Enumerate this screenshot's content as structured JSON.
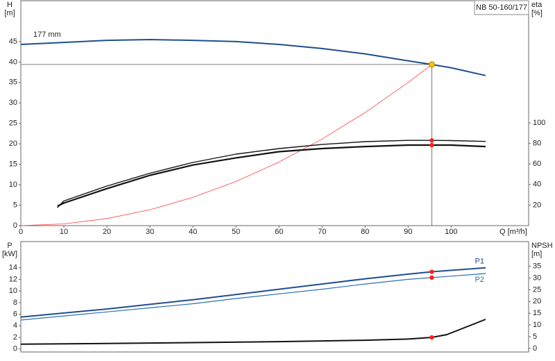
{
  "chart_data": [
    {
      "type": "line",
      "title": "NB 50-160/177",
      "ylabel": "H",
      "yunit": "[m]",
      "y2label": "eta",
      "y2unit": "[%]",
      "xlabel": "Q [m³/h]",
      "annotation": "177 mm",
      "xlim": [
        0,
        118
      ],
      "xticks": [
        0,
        10,
        20,
        30,
        40,
        50,
        60,
        70,
        80,
        90,
        100
      ],
      "ylim": [
        0,
        55
      ],
      "yticks": [
        0,
        5,
        10,
        15,
        20,
        25,
        30,
        35,
        40,
        45
      ],
      "y2lim": [
        0,
        219
      ],
      "y2ticks": [
        20,
        40,
        60,
        80,
        100
      ],
      "grid": false,
      "series": [
        {
          "color": "#1f4e8c",
          "width": 2,
          "x": [
            0,
            10,
            20,
            30,
            40,
            50,
            60,
            70,
            80,
            90,
            95.5,
            100,
            108
          ],
          "values": [
            44.3,
            44.8,
            45.3,
            45.5,
            45.3,
            45.0,
            44.3,
            43.3,
            42.0,
            40.3,
            39.4,
            38.6,
            36.7
          ]
        },
        {
          "color": "#ff4040",
          "width": 0.8,
          "x": [
            0,
            10,
            20,
            30,
            40,
            50,
            60,
            70,
            80,
            90,
            95.5
          ],
          "values": [
            0,
            0.43,
            1.73,
            3.89,
            6.91,
            10.8,
            15.55,
            21.17,
            27.65,
            35.0,
            39.4
          ]
        },
        {
          "color": "#111111",
          "width": 2.2,
          "axis": "y2",
          "x": [
            8.5,
            10,
            20,
            30,
            40,
            50,
            60,
            70,
            80,
            90,
            95.5,
            100,
            108
          ],
          "values": [
            19,
            22,
            36,
            49,
            59,
            66,
            72,
            75,
            77,
            78.4,
            78.4,
            78.4,
            77
          ]
        },
        {
          "color": "#111111",
          "width": 1.4,
          "axis": "y2",
          "x": [
            8.5,
            10,
            20,
            30,
            40,
            50,
            60,
            70,
            80,
            90,
            95.5,
            100,
            108
          ],
          "values": [
            17.6,
            24,
            38.5,
            51,
            61.5,
            69.6,
            75,
            79,
            81.8,
            83,
            83,
            82.8,
            82
          ]
        }
      ],
      "points": [
        {
          "x": 95.5,
          "y": 39.4,
          "color": "#f5c400",
          "guides": true
        },
        {
          "x": 95.5,
          "y": 83,
          "color": "#ff2020",
          "axis": "y2"
        },
        {
          "x": 95.5,
          "y": 78.4,
          "color": "#ff2020",
          "axis": "y2"
        }
      ]
    },
    {
      "type": "line",
      "ylabel": "P",
      "yunit": "[kW]",
      "y2label": "NPSH",
      "y2unit": "[m]",
      "xlim": [
        0,
        118
      ],
      "ylim": [
        -0.5,
        18.5
      ],
      "yticks": [
        0,
        2,
        4,
        6,
        8,
        10,
        12,
        14
      ],
      "y2lim": [
        -1.5,
        45.5
      ],
      "y2ticks": [
        0,
        5,
        10,
        15,
        20,
        25,
        30,
        35
      ],
      "grid": false,
      "series": [
        {
          "name": "P1",
          "color": "#1f4e8c",
          "width": 2,
          "x": [
            0,
            10,
            20,
            30,
            40,
            50,
            60,
            70,
            80,
            90,
            95.5,
            108
          ],
          "values": [
            5.5,
            6.2,
            6.9,
            7.7,
            8.5,
            9.4,
            10.3,
            11.2,
            12.1,
            12.9,
            13.3,
            14.0
          ]
        },
        {
          "name": "P2",
          "color": "#2a6fb5",
          "width": 1.2,
          "x": [
            0,
            10,
            20,
            30,
            40,
            50,
            60,
            70,
            80,
            90,
            95.5,
            108
          ],
          "values": [
            5.0,
            5.7,
            6.4,
            7.1,
            7.8,
            8.7,
            9.5,
            10.3,
            11.2,
            12.0,
            12.3,
            13.0
          ]
        },
        {
          "color": "#111111",
          "width": 2,
          "axis": "y2",
          "x": [
            0,
            20,
            40,
            60,
            80,
            90,
            95.5,
            99,
            108
          ],
          "values": [
            1.8,
            2.1,
            2.5,
            2.9,
            3.5,
            4.0,
            4.7,
            5.9,
            12.4
          ]
        }
      ],
      "points": [
        {
          "x": 95.5,
          "y": 13.3,
          "color": "#ff2020"
        },
        {
          "x": 95.5,
          "y": 12.3,
          "color": "#ff2020"
        },
        {
          "x": 95.5,
          "y": 4.7,
          "color": "#ff2020",
          "axis": "y2"
        }
      ]
    }
  ]
}
